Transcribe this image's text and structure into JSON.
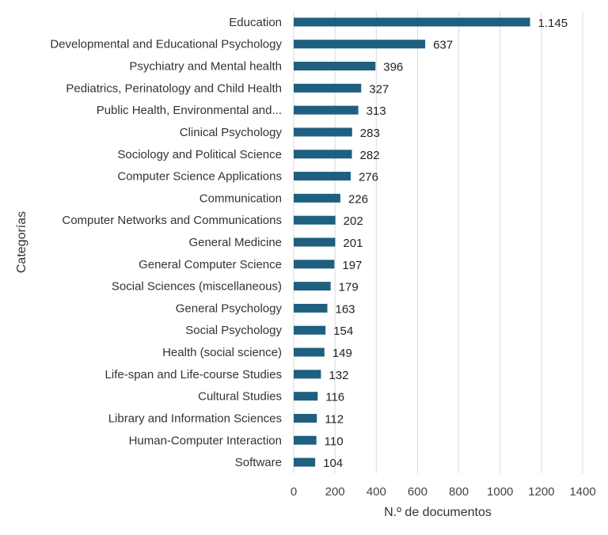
{
  "chart_data": {
    "type": "bar",
    "orientation": "horizontal",
    "categories": [
      "Education",
      "Developmental and Educational Psychology",
      "Psychiatry and Mental health",
      "Pediatrics, Perinatology and Child Health",
      "Public Health, Environmental and...",
      "Clinical Psychology",
      "Sociology and Political Science",
      "Computer Science Applications",
      "Communication",
      "Computer Networks and Communications",
      "General Medicine",
      "General Computer Science",
      "Social Sciences (miscellaneous)",
      "General Psychology",
      "Social Psychology",
      "Health (social science)",
      "Life-span and Life-course Studies",
      "Cultural Studies",
      "Library and Information Sciences",
      "Human-Computer Interaction",
      "Software"
    ],
    "values": [
      1145,
      637,
      396,
      327,
      313,
      283,
      282,
      276,
      226,
      202,
      201,
      197,
      179,
      163,
      154,
      149,
      132,
      116,
      112,
      110,
      104
    ],
    "value_labels": [
      "1.145",
      "637",
      "396",
      "327",
      "313",
      "283",
      "282",
      "276",
      "226",
      "202",
      "201",
      "197",
      "179",
      "163",
      "154",
      "149",
      "132",
      "116",
      "112",
      "110",
      "104"
    ],
    "xlabel": "N.º de documentos",
    "ylabel": "Categorías",
    "xlim": [
      0,
      1400
    ],
    "xticks": [
      0,
      200,
      400,
      600,
      800,
      1000,
      1200,
      1400
    ],
    "xtick_labels": [
      "0",
      "200",
      "400",
      "600",
      "800",
      "1000",
      "1200",
      "1400"
    ],
    "grid": "vertical",
    "legend": "none",
    "bar_color": "#1f5f7f"
  }
}
